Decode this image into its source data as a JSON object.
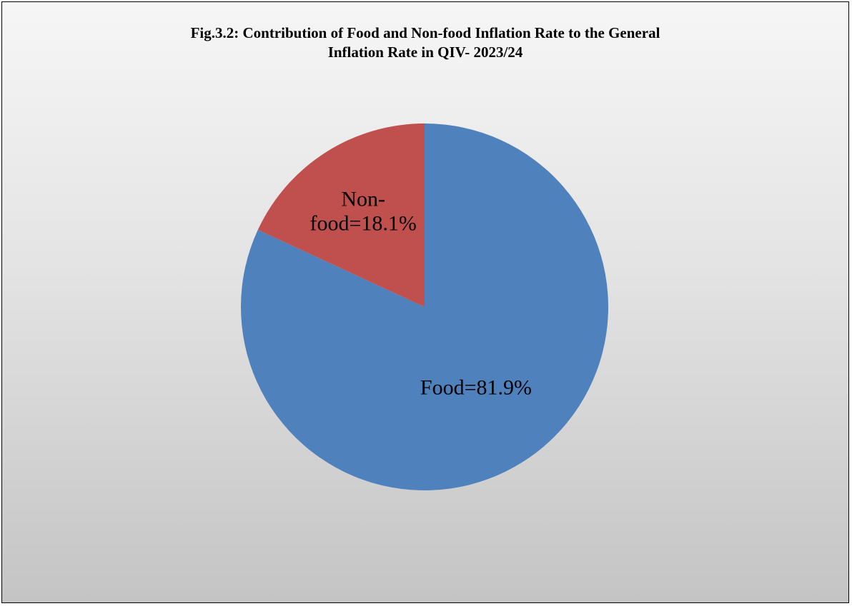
{
  "chart_data": {
    "type": "pie",
    "title_lines": [
      "Fig.3.2: Contribution of Food and Non-food Inflation Rate to the General",
      "Inflation Rate in QIV- 2023/24"
    ],
    "slices": [
      {
        "name": "Food",
        "value": 81.9,
        "color": "#4f81bd",
        "label_lines": [
          "Food=81.9%"
        ]
      },
      {
        "name": "Non-food",
        "value": 18.1,
        "color": "#c0504d",
        "label_lines": [
          "Non-",
          "food=18.1%"
        ]
      }
    ],
    "start_angle": "12 o'clock, clockwise",
    "legend": "none"
  }
}
